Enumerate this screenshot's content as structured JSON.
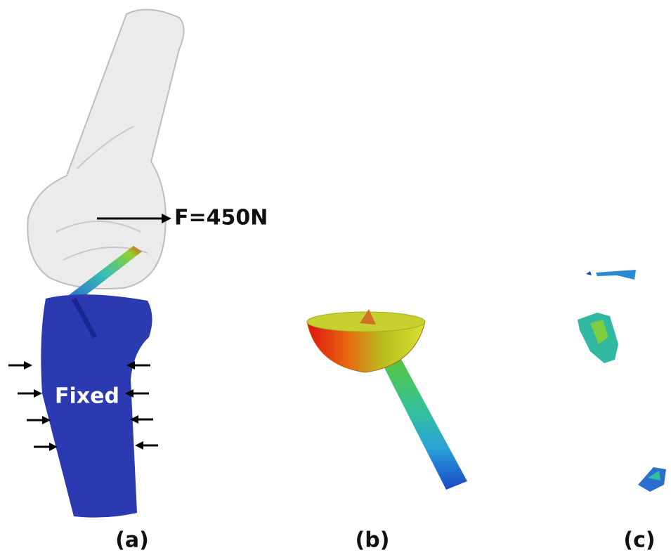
{
  "annotations": {
    "force": "F=450N",
    "fixed": "Fixed"
  },
  "panels": [
    {
      "label": "(a)"
    },
    {
      "label": "(b)"
    },
    {
      "label": "(c)"
    }
  ]
}
